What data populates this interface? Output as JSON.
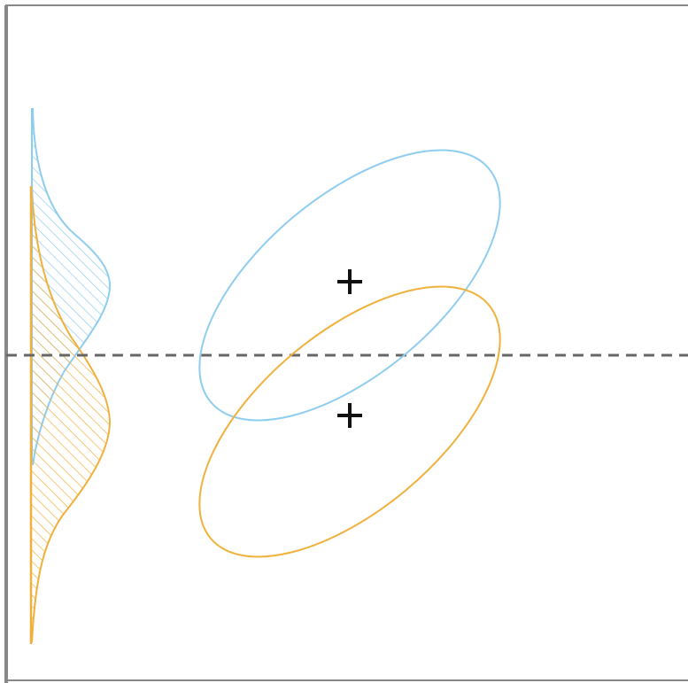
{
  "diagram": {
    "colors": {
      "class_a": "#8ecdf0",
      "class_b": "#f0b13c",
      "boundary": "#666666",
      "frame": "#888888",
      "marker": "#111111"
    },
    "classes": [
      {
        "id": "class-a",
        "color_key": "class_a",
        "hatch": "diagonal"
      },
      {
        "id": "class-b",
        "color_key": "class_b",
        "hatch": "diagonal"
      }
    ],
    "elements": {
      "decision_boundary": {
        "style": "dashed",
        "orientation": "horizontal"
      },
      "class_means": {
        "marker": "plus"
      }
    }
  }
}
